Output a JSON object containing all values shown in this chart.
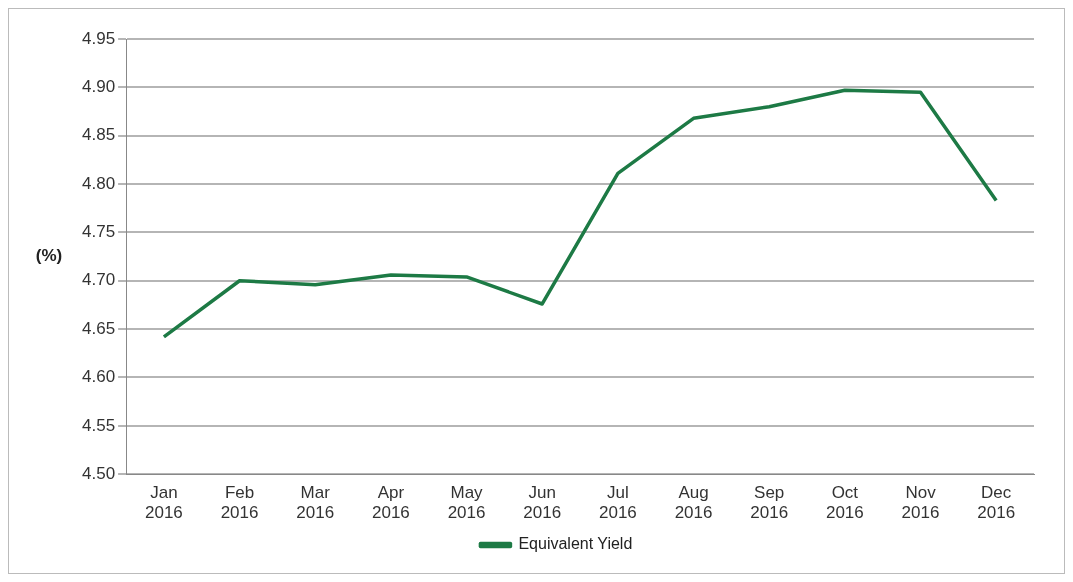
{
  "chart_data": {
    "type": "line",
    "ylabel": "(%)",
    "categories": [
      "Jan 2016",
      "Feb 2016",
      "Mar 2016",
      "Apr 2016",
      "May 2016",
      "Jun 2016",
      "Jul 2016",
      "Aug 2016",
      "Sep 2016",
      "Oct 2016",
      "Nov 2016",
      "Dec 2016"
    ],
    "series": [
      {
        "name": "Equivalent Yield",
        "color": "#1d7a45",
        "values": [
          4.642,
          4.7,
          4.696,
          4.706,
          4.704,
          4.676,
          4.811,
          4.868,
          4.88,
          4.897,
          4.895,
          4.783
        ]
      }
    ],
    "ylim": [
      4.5,
      4.95
    ],
    "yticks": [
      {
        "value": 4.5,
        "label": "4.50"
      },
      {
        "value": 4.55,
        "label": "4.55"
      },
      {
        "value": 4.6,
        "label": "4.60"
      },
      {
        "value": 4.65,
        "label": "4.65"
      },
      {
        "value": 4.7,
        "label": "4.70"
      },
      {
        "value": 4.75,
        "label": "4.75"
      },
      {
        "value": 4.8,
        "label": "4.80"
      },
      {
        "value": 4.85,
        "label": "4.85"
      },
      {
        "value": 4.9,
        "label": "4.90"
      },
      {
        "value": 4.95,
        "label": "4.95"
      }
    ],
    "grid": "y",
    "legend": "bottom",
    "marker": "none",
    "line_style": "solid"
  }
}
